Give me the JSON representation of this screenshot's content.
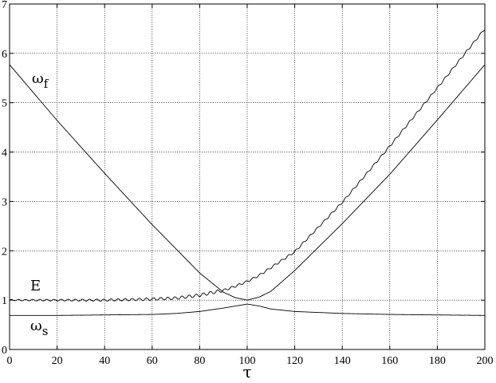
{
  "chart_data": {
    "type": "line",
    "title": "",
    "xlabel": "τ",
    "ylabel": "",
    "xlim": [
      0,
      200
    ],
    "ylim": [
      0,
      7
    ],
    "xticks": [
      0,
      20,
      40,
      60,
      80,
      100,
      120,
      140,
      160,
      180,
      200
    ],
    "yticks": [
      0,
      1,
      2,
      3,
      4,
      5,
      6,
      7
    ],
    "grid": true,
    "colors": {
      "line": "#000000",
      "grid": "#000000",
      "background": "#ffffff"
    },
    "series": [
      {
        "key": "omega_f",
        "x": [
          0,
          20,
          40,
          60,
          80,
          90,
          95,
          100,
          105,
          110,
          120,
          140,
          160,
          180,
          200
        ],
        "y": [
          5.77,
          4.64,
          3.57,
          2.53,
          1.55,
          1.16,
          1.05,
          1.0,
          1.06,
          1.18,
          1.6,
          2.55,
          3.55,
          4.65,
          5.77
        ]
      },
      {
        "key": "E",
        "x": [
          0,
          20,
          40,
          60,
          70,
          80,
          90,
          95,
          100,
          105,
          110,
          120,
          140,
          160,
          180,
          200
        ],
        "y": [
          1.0,
          1.0,
          1.0,
          1.02,
          1.04,
          1.1,
          1.2,
          1.28,
          1.38,
          1.5,
          1.66,
          1.98,
          2.98,
          4.12,
          5.3,
          6.5
        ]
      },
      {
        "key": "omega_s",
        "x": [
          0,
          20,
          40,
          60,
          70,
          80,
          90,
          95,
          100,
          105,
          110,
          120,
          140,
          160,
          180,
          200
        ],
        "y": [
          0.69,
          0.69,
          0.7,
          0.71,
          0.73,
          0.77,
          0.84,
          0.88,
          0.92,
          0.88,
          0.82,
          0.77,
          0.73,
          0.71,
          0.7,
          0.69
        ]
      }
    ],
    "annotations": {
      "omega_f": {
        "symbol": "ω",
        "sub": "f"
      },
      "E": {
        "symbol": "E",
        "sub": ""
      },
      "omega_s": {
        "symbol": "ω",
        "sub": "s"
      }
    }
  }
}
